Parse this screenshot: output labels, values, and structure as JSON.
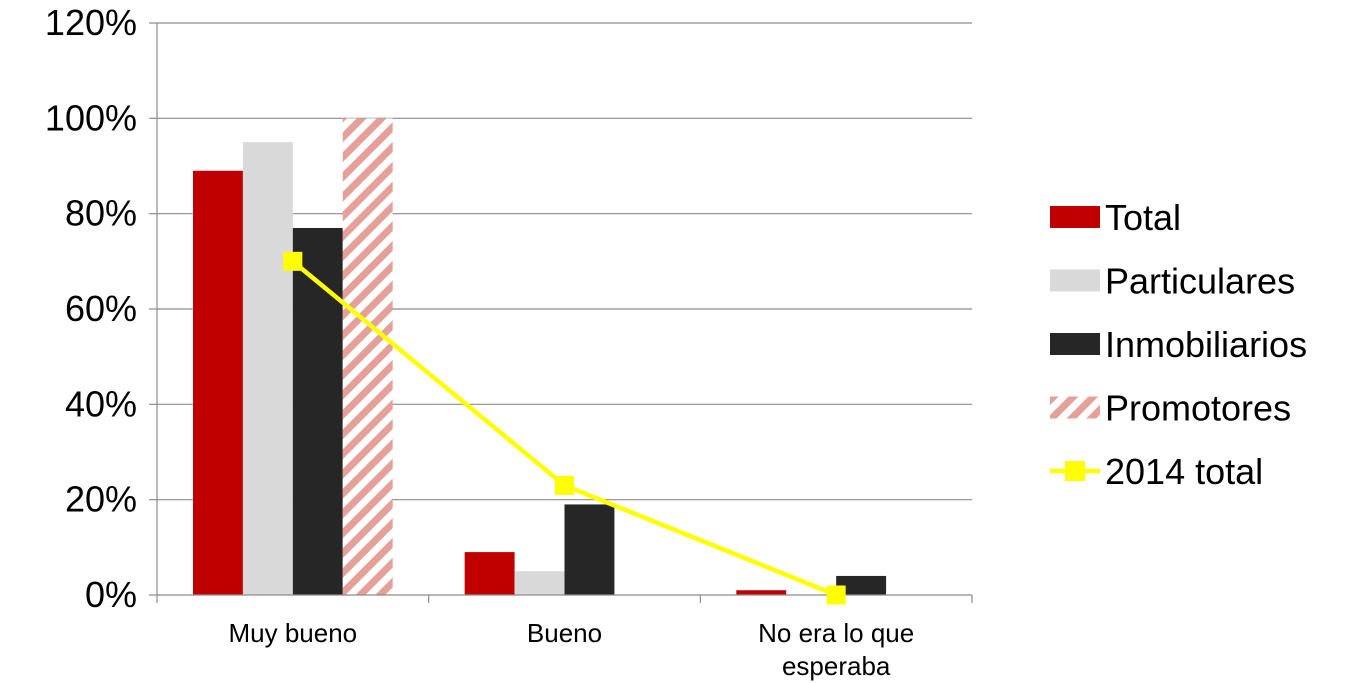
{
  "chart_data": {
    "type": "bar",
    "categories": [
      "Muy bueno",
      "Bueno",
      "No era lo que esperaba"
    ],
    "category_lines": [
      [
        "Muy bueno"
      ],
      [
        "Bueno"
      ],
      [
        "No era lo que",
        "esperaba"
      ]
    ],
    "series": [
      {
        "name": "Total",
        "kind": "bar",
        "color": "#c00000",
        "pattern": "solid",
        "values": [
          89,
          9,
          1
        ]
      },
      {
        "name": "Particulares",
        "kind": "bar",
        "color": "#d9d9d9",
        "pattern": "solid",
        "values": [
          95,
          5,
          0
        ]
      },
      {
        "name": "Inmobiliarios",
        "kind": "bar",
        "color": "#262626",
        "pattern": "solid",
        "values": [
          77,
          19,
          4
        ]
      },
      {
        "name": "Promotores",
        "kind": "bar",
        "color": "#e6a09a",
        "pattern": "diagonal-stripes",
        "values": [
          100,
          0,
          0
        ]
      },
      {
        "name": "2014 total",
        "kind": "line",
        "color": "#ffff00",
        "marker": "square",
        "values": [
          70,
          23,
          0
        ]
      }
    ],
    "yticks": [
      "0%",
      "20%",
      "40%",
      "60%",
      "80%",
      "100%",
      "120%"
    ],
    "ylim": [
      0,
      120
    ],
    "grid": true,
    "legend_position": "right"
  }
}
